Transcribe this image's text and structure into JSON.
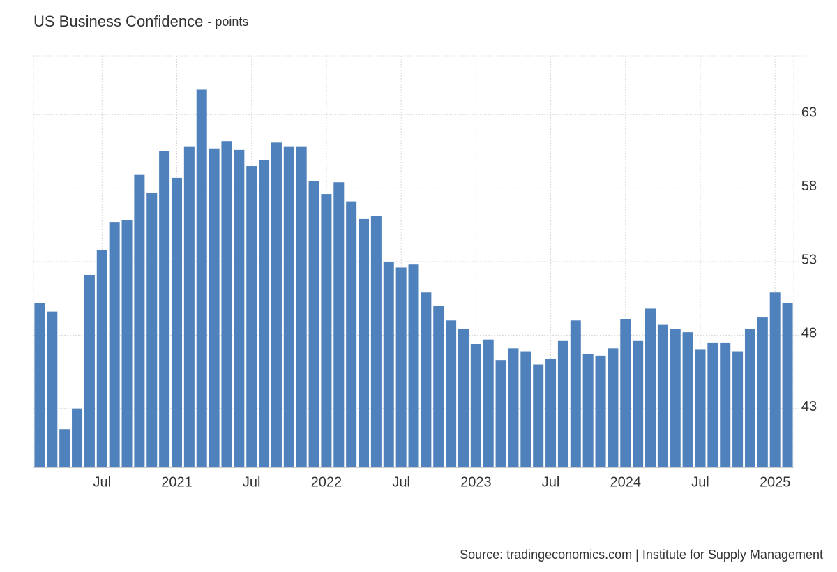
{
  "chart_data": {
    "type": "bar",
    "title": "US Business Confidence",
    "subtitle": "- points",
    "source": "Source: tradingeconomics.com | Institute for Supply Management",
    "color": "#4f81bd",
    "categories": [
      null,
      null,
      null,
      null,
      null,
      "Jul",
      null,
      null,
      null,
      null,
      null,
      "2021",
      null,
      null,
      null,
      null,
      null,
      "Jul",
      null,
      null,
      null,
      null,
      null,
      "2022",
      null,
      null,
      null,
      null,
      null,
      "Jul",
      null,
      null,
      null,
      null,
      null,
      "2023",
      null,
      null,
      null,
      null,
      null,
      "Jul",
      null,
      null,
      null,
      null,
      null,
      "2024",
      null,
      null,
      null,
      null,
      null,
      "Jul",
      null,
      null,
      null,
      null,
      null,
      "2025",
      null
    ],
    "values": [
      50.2,
      49.6,
      41.6,
      43.0,
      52.1,
      53.8,
      55.7,
      55.8,
      58.9,
      57.7,
      60.5,
      58.7,
      60.8,
      64.7,
      60.7,
      61.2,
      60.6,
      59.5,
      59.9,
      61.1,
      60.8,
      60.8,
      58.5,
      57.6,
      58.4,
      57.1,
      55.9,
      56.1,
      53.0,
      52.6,
      52.8,
      50.9,
      50.0,
      49.0,
      48.4,
      47.4,
      47.7,
      46.3,
      47.1,
      46.9,
      46.0,
      46.4,
      47.6,
      49.0,
      46.7,
      46.6,
      47.1,
      49.1,
      47.6,
      49.8,
      48.7,
      48.4,
      48.2,
      47.0,
      47.5,
      47.5,
      46.9,
      48.4,
      49.2,
      50.9,
      50.2
    ],
    "ylim": [
      39,
      67
    ],
    "yticks": [
      43,
      48,
      53,
      58,
      63
    ],
    "grid": true
  }
}
